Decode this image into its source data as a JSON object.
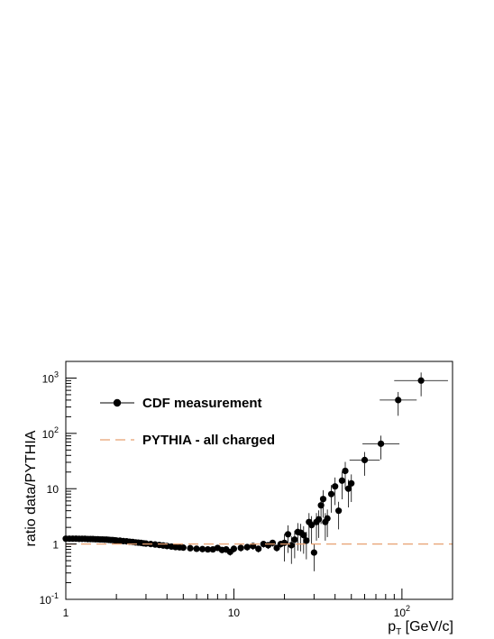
{
  "chart_data": {
    "type": "scatter",
    "title": "",
    "xlabel": {
      "base": "p",
      "sub": "T",
      "rest": " [GeV/c]"
    },
    "ylabel": "ratio data/PYTHIA",
    "x_scale": "log",
    "y_scale": "log",
    "xlim": [
      1,
      200
    ],
    "ylim": [
      0.1,
      2000
    ],
    "grid": false,
    "legend_position": "top-left",
    "x_ticks": [
      {
        "value": 1,
        "label": "1",
        "exp": ""
      },
      {
        "value": 10,
        "label": "10",
        "exp": ""
      },
      {
        "value": 100,
        "label": "10",
        "exp": "2"
      }
    ],
    "y_ticks": [
      {
        "value": 0.1,
        "label": "10",
        "exp": "-1"
      },
      {
        "value": 1,
        "label": "1",
        "exp": ""
      },
      {
        "value": 10,
        "label": "10",
        "exp": ""
      },
      {
        "value": 100,
        "label": "10",
        "exp": "2"
      },
      {
        "value": 1000,
        "label": "10",
        "exp": "3"
      }
    ],
    "series": [
      {
        "name": "CDF measurement",
        "kind": "points",
        "color": "#000000",
        "points": [
          {
            "x": 1.0,
            "y": 1.25
          },
          {
            "x": 1.05,
            "y": 1.25
          },
          {
            "x": 1.1,
            "y": 1.25
          },
          {
            "x": 1.15,
            "y": 1.25
          },
          {
            "x": 1.2,
            "y": 1.24
          },
          {
            "x": 1.25,
            "y": 1.24
          },
          {
            "x": 1.3,
            "y": 1.24
          },
          {
            "x": 1.35,
            "y": 1.23
          },
          {
            "x": 1.4,
            "y": 1.23
          },
          {
            "x": 1.45,
            "y": 1.23
          },
          {
            "x": 1.5,
            "y": 1.22
          },
          {
            "x": 1.55,
            "y": 1.22
          },
          {
            "x": 1.6,
            "y": 1.21
          },
          {
            "x": 1.65,
            "y": 1.21
          },
          {
            "x": 1.7,
            "y": 1.2
          },
          {
            "x": 1.75,
            "y": 1.2
          },
          {
            "x": 1.8,
            "y": 1.19
          },
          {
            "x": 1.85,
            "y": 1.18
          },
          {
            "x": 1.9,
            "y": 1.18
          },
          {
            "x": 1.95,
            "y": 1.17
          },
          {
            "x": 2.0,
            "y": 1.16
          },
          {
            "x": 2.1,
            "y": 1.15
          },
          {
            "x": 2.2,
            "y": 1.13
          },
          {
            "x": 2.3,
            "y": 1.12
          },
          {
            "x": 2.4,
            "y": 1.1
          },
          {
            "x": 2.5,
            "y": 1.09
          },
          {
            "x": 2.6,
            "y": 1.07
          },
          {
            "x": 2.7,
            "y": 1.06
          },
          {
            "x": 2.8,
            "y": 1.05
          },
          {
            "x": 2.9,
            "y": 1.03
          },
          {
            "x": 3.0,
            "y": 1.02
          },
          {
            "x": 3.2,
            "y": 1.0
          },
          {
            "x": 3.4,
            "y": 0.98
          },
          {
            "x": 3.6,
            "y": 0.96
          },
          {
            "x": 3.8,
            "y": 0.94
          },
          {
            "x": 4.0,
            "y": 0.92
          },
          {
            "x": 4.25,
            "y": 0.9
          },
          {
            "x": 4.5,
            "y": 0.88
          },
          {
            "x": 4.75,
            "y": 0.87
          },
          {
            "x": 5.0,
            "y": 0.86
          },
          {
            "x": 5.5,
            "y": 0.84
          },
          {
            "x": 6.0,
            "y": 0.82
          },
          {
            "x": 6.5,
            "y": 0.81
          },
          {
            "x": 7.0,
            "y": 0.8
          },
          {
            "x": 7.5,
            "y": 0.8
          },
          {
            "x": 8.0,
            "y": 0.85
          },
          {
            "x": 8.5,
            "y": 0.78
          },
          {
            "x": 9.0,
            "y": 0.8
          },
          {
            "x": 9.5,
            "y": 0.72
          },
          {
            "x": 10.0,
            "y": 0.82
          },
          {
            "x": 11.0,
            "y": 0.85
          },
          {
            "x": 12.0,
            "y": 0.88
          },
          {
            "x": 13.0,
            "y": 0.92
          },
          {
            "x": 14.0,
            "y": 0.82
          },
          {
            "x": 15.0,
            "y": 1.0
          },
          {
            "x": 16.0,
            "y": 0.95
          },
          {
            "x": 17.0,
            "y": 1.05
          },
          {
            "x": 18.0,
            "y": 0.85
          },
          {
            "x": 19.0,
            "y": 1.0
          },
          {
            "x": 20.0,
            "y": 1.05
          },
          {
            "x": 21.0,
            "y": 1.5
          },
          {
            "x": 22.0,
            "y": 0.95
          },
          {
            "x": 23.0,
            "y": 1.2
          },
          {
            "x": 24.0,
            "y": 1.65
          },
          {
            "x": 25.0,
            "y": 1.6
          },
          {
            "x": 26.0,
            "y": 1.45
          },
          {
            "x": 27.0,
            "y": 1.15
          },
          {
            "x": 28.0,
            "y": 2.5
          },
          {
            "x": 29.0,
            "y": 2.2
          },
          {
            "x": 30.0,
            "y": 0.7
          },
          {
            "x": 31.0,
            "y": 2.5
          },
          {
            "x": 32.0,
            "y": 2.8
          },
          {
            "x": 33.0,
            "y": 5.0
          },
          {
            "x": 34.0,
            "y": 6.5
          },
          {
            "x": 35.0,
            "y": 2.5
          },
          {
            "x": 36.0,
            "y": 2.9
          },
          {
            "x": 38.0,
            "y": 8.0
          },
          {
            "x": 40.0,
            "y": 11.0
          },
          {
            "x": 42.0,
            "y": 4.0
          },
          {
            "x": 44.0,
            "y": 14.0
          },
          {
            "x": 46.0,
            "y": 21.0
          },
          {
            "x": 48.0,
            "y": 10.0
          },
          {
            "x": 50.0,
            "y": 12.5
          },
          {
            "x": 60.0,
            "y": 33.0
          },
          {
            "x": 75.0,
            "y": 65.0
          },
          {
            "x": 95.0,
            "y": 400.0
          },
          {
            "x": 130.0,
            "y": 900.0
          }
        ]
      },
      {
        "name": "PYTHIA - all charged",
        "kind": "dashed-line",
        "color": "#e8a070",
        "y": 1.0
      }
    ]
  }
}
